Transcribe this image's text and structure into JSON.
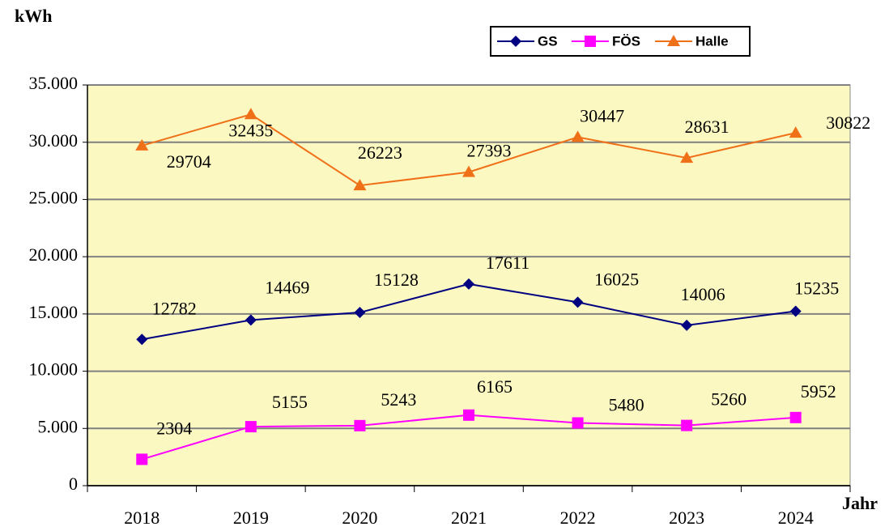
{
  "chart_data": {
    "type": "line",
    "y_label": "kWh",
    "x_label": "Jahr",
    "categories": [
      "2018",
      "2019",
      "2020",
      "2021",
      "2022",
      "2023",
      "2024"
    ],
    "series": [
      {
        "name": "GS",
        "color": "#000080",
        "marker": "diamond",
        "values": [
          12782,
          14469,
          15128,
          17611,
          16025,
          14006,
          15235
        ]
      },
      {
        "name": "FÖS",
        "color": "#FF00FF",
        "marker": "square",
        "values": [
          2304,
          5155,
          5243,
          6165,
          5480,
          5260,
          5952
        ]
      },
      {
        "name": "Halle",
        "color": "#F07018",
        "marker": "triangle",
        "values": [
          29704,
          32435,
          26223,
          27393,
          30447,
          28631,
          30822
        ]
      }
    ],
    "ylim": [
      0,
      35000
    ],
    "yticks": [
      0,
      {
        "value": 5000,
        "label": "5.000"
      },
      {
        "value": 10000,
        "label": "10.000"
      },
      {
        "value": 15000,
        "label": "15.000"
      },
      {
        "value": 20000,
        "label": "20.000"
      },
      {
        "value": 25000,
        "label": "25.000"
      },
      {
        "value": 30000,
        "label": "30.000"
      },
      {
        "value": 35000,
        "label": "35.000"
      }
    ],
    "grid": true,
    "legend": "top-right",
    "plot_background": "#FBF8C2"
  }
}
